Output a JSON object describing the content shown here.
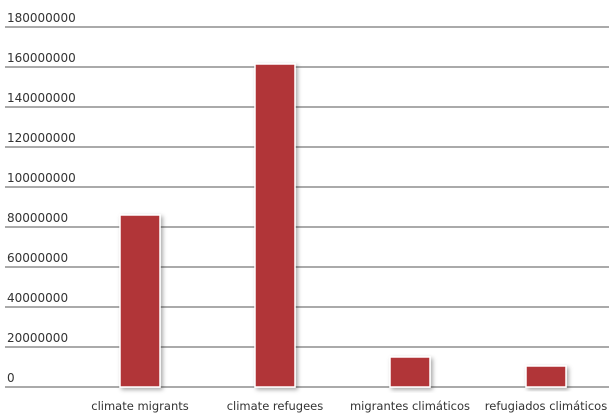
{
  "chart_data": {
    "type": "bar",
    "categories": [
      "climate migrants",
      "climate refugees",
      "migrantes climáticos",
      "refugiados climáticos"
    ],
    "values": [
      86000000,
      161500000,
      15000000,
      10500000
    ],
    "ylim": [
      0,
      180000000
    ],
    "yticks": [
      "0",
      "20000000",
      "40000000",
      "60000000",
      "80000000",
      "100000000",
      "120000000",
      "140000000",
      "160000000",
      "180000000"
    ],
    "grid": true,
    "legend": "none",
    "bar_color": "#b13538",
    "title": "",
    "xlabel": "",
    "ylabel": ""
  }
}
